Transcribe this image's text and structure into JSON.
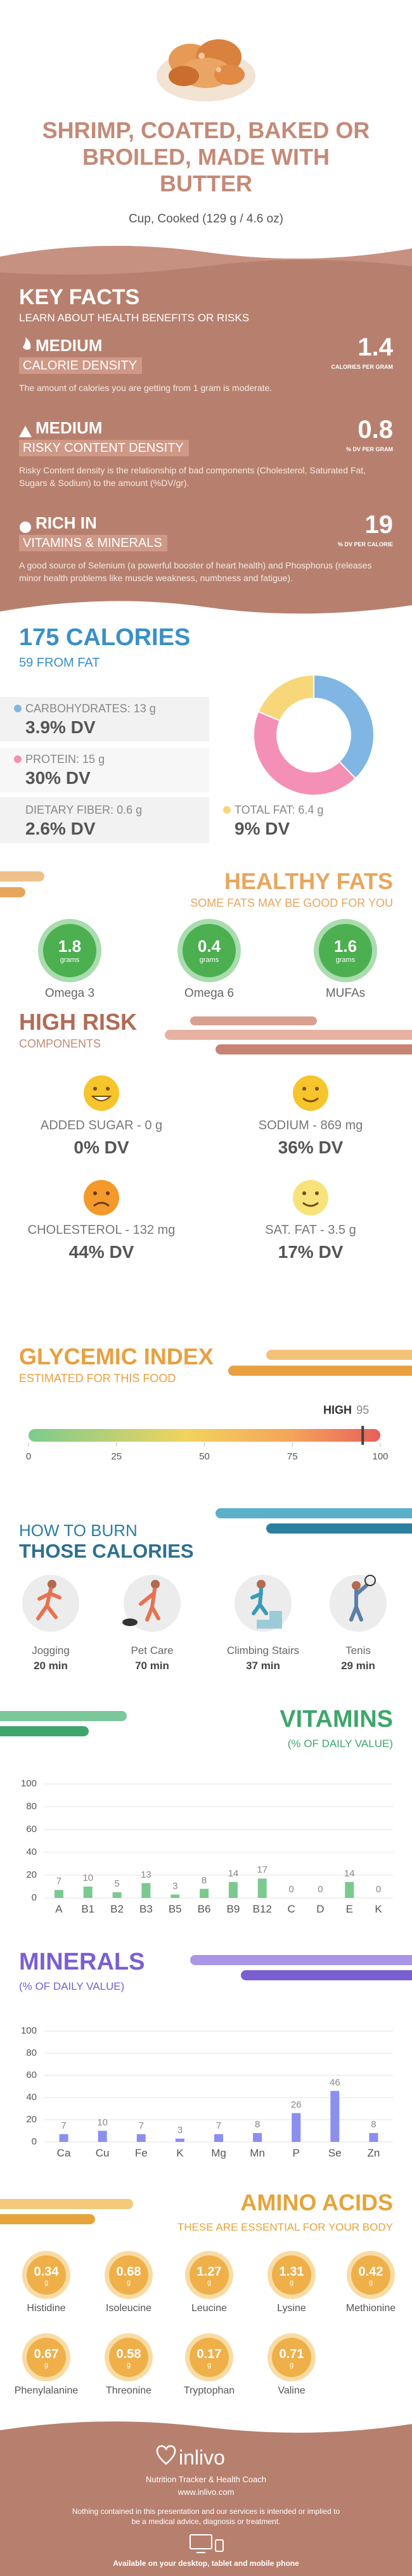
{
  "header": {
    "title": "SHRIMP, COATED, BAKED OR BROILED, MADE WITH BUTTER",
    "serving": "Cup, Cooked (129 g / 4.6 oz)"
  },
  "key_facts": {
    "title": "KEY FACTS",
    "subtitle": "LEARN ABOUT HEALTH BENEFITS OR RISKS",
    "items": [
      {
        "level": "MEDIUM",
        "name": "CALORIE DENSITY",
        "value": "1.4",
        "unit": "CALORIES PER GRAM",
        "description": "The amount of calories you are getting from 1 gram is moderate."
      },
      {
        "level": "MEDIUM",
        "name": "RISKY CONTENT DENSITY",
        "value": "0.8",
        "unit": "% DV PER GRAM",
        "description": "Risky Content density is the relationship of bad components (Cholesterol, Saturated Fat, Sugars & Sodium) to the amount (%DV/gr)."
      },
      {
        "level": "RICH IN",
        "name": "VITAMINS & MINERALS",
        "value": "19",
        "unit": "% DV PER CALORIE",
        "description": "A good source of Selenium (a powerful booster of heart health) and Phosphorus (releases minor health problems like muscle weakness, numbness and fatigue)."
      }
    ]
  },
  "calories": {
    "title": "175 CALORIES",
    "from_fat": "59 FROM FAT",
    "type": "pie",
    "nutrients": [
      {
        "label": "CARBOHYDRATES:",
        "amount": 13,
        "unit": "g",
        "dv": "3.9% DV",
        "color": "#7fb6e3"
      },
      {
        "label": "PROTEIN:",
        "amount": 15,
        "unit": "g",
        "dv": "30% DV",
        "color": "#f48fb5"
      },
      {
        "label": "DIETARY FIBER:",
        "amount": 0.6,
        "unit": "g",
        "dv": "2.6% DV"
      },
      {
        "label": "TOTAL FAT:",
        "amount": 6.4,
        "unit": "g",
        "dv": "9% DV",
        "color": "#f7d77a"
      }
    ]
  },
  "healthy_fats": {
    "title": "HEALTHY FATS",
    "subtitle": "SOME FATS MAY BE GOOD FOR YOU",
    "items": [
      {
        "value": 1.8,
        "unit": "grams",
        "name": "Omega 3"
      },
      {
        "value": 0.4,
        "unit": "grams",
        "name": "Omega 6"
      },
      {
        "value": 1.6,
        "unit": "grams",
        "name": "MUFAs"
      }
    ]
  },
  "high_risk": {
    "title": "HIGH RISK",
    "subtitle": "COMPONENTS",
    "items": [
      {
        "name": "ADDED SUGAR - 0 g",
        "dv": "0% DV"
      },
      {
        "name": "SODIUM - 869 mg",
        "dv": "36% DV"
      },
      {
        "name": "CHOLESTEROL - 132 mg",
        "dv": "44% DV"
      },
      {
        "name": "SAT. FAT - 3.5 g",
        "dv": "17% DV"
      }
    ]
  },
  "glycemic": {
    "title": "GLYCEMIC INDEX",
    "subtitle": "ESTIMATED FOR THIS FOOD",
    "level": "HIGH",
    "value": 95,
    "xlim": [
      0,
      100
    ],
    "xticks": [
      0,
      25,
      50,
      75,
      100
    ]
  },
  "burn": {
    "title": "HOW TO BURN",
    "subtitle": "THOSE CALORIES",
    "items": [
      {
        "activity": "Jogging",
        "time": "20 min"
      },
      {
        "activity": "Pet Care",
        "time": "70 min"
      },
      {
        "activity": "Climbing Stairs",
        "time": "37 min"
      },
      {
        "activity": "Tenis",
        "time": "29 min"
      }
    ]
  },
  "vitamins": {
    "title": "VITAMINS",
    "subtitle": "(% OF DAILY VALUE)",
    "chart_data": {
      "type": "bar",
      "categories": [
        "A",
        "B1",
        "B2",
        "B3",
        "B5",
        "B6",
        "B9",
        "B12",
        "C",
        "D",
        "E",
        "K"
      ],
      "values": [
        7,
        10,
        5,
        13,
        3,
        8,
        14,
        17,
        0,
        0,
        14,
        0
      ],
      "color": "#7cc98f",
      "ylim": [
        0,
        100
      ],
      "yticks": [
        0,
        20,
        40,
        60,
        80,
        100
      ],
      "grid": true
    }
  },
  "minerals": {
    "title": "MINERALS",
    "subtitle": "(% OF DAILY VALUE)",
    "chart_data": {
      "type": "bar",
      "categories": [
        "Ca",
        "Cu",
        "Fe",
        "K",
        "Mg",
        "Mn",
        "P",
        "Se",
        "Zn"
      ],
      "values": [
        7,
        10,
        7,
        3,
        7,
        8,
        26,
        46,
        8
      ],
      "color": "#8a8ff0",
      "ylim": [
        0,
        100
      ],
      "yticks": [
        0,
        20,
        40,
        60,
        80,
        100
      ],
      "grid": true
    }
  },
  "amino_acids": {
    "title": "AMINO ACIDS",
    "subtitle": "THESE ARE ESSENTIAL FOR YOUR BODY",
    "items": [
      {
        "name": "Histidine",
        "value": 0.34,
        "unit": "g"
      },
      {
        "name": "Isoleucine",
        "value": 0.68,
        "unit": "g"
      },
      {
        "name": "Leucine",
        "value": 1.27,
        "unit": "g"
      },
      {
        "name": "Lysine",
        "value": 1.31,
        "unit": "g"
      },
      {
        "name": "Methionine",
        "value": 0.42,
        "unit": "g"
      },
      {
        "name": "Phenylalanine",
        "value": 0.67,
        "unit": "g"
      },
      {
        "name": "Threonine",
        "value": 0.58,
        "unit": "g"
      },
      {
        "name": "Tryptophan",
        "value": 0.17,
        "unit": "g"
      },
      {
        "name": "Valine",
        "value": 0.71,
        "unit": "g"
      }
    ]
  },
  "footer": {
    "brand": "inlivo",
    "tagline": "Nutrition Tracker & Health Coach",
    "url": "www.inlivo.com",
    "disclaimer": "Nothing contained in this presentation and our services is intended or implied to be a medical advice, diagnosis or treatment.",
    "availability": "Available on your desktop, tablet and mobile phone"
  }
}
